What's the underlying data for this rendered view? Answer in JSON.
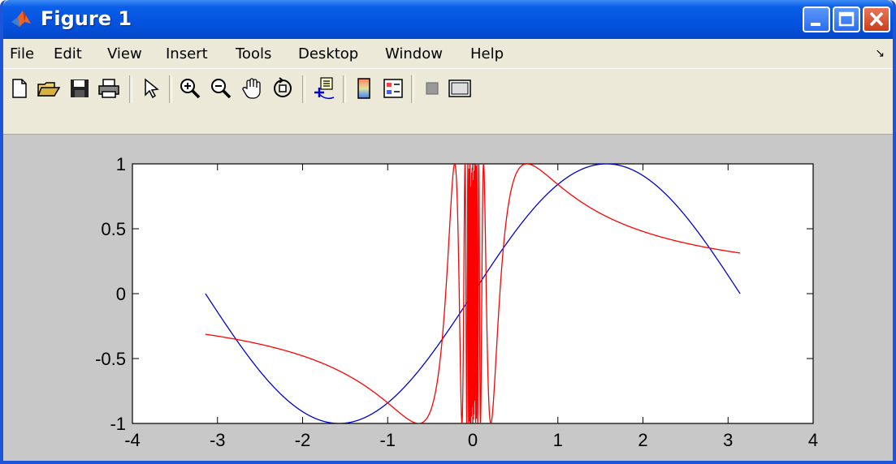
{
  "window": {
    "title": "Figure 1"
  },
  "menu": {
    "items": [
      "File",
      "Edit",
      "View",
      "Insert",
      "Tools",
      "Desktop",
      "Window",
      "Help"
    ]
  },
  "toolbar": {
    "buttons": [
      "new-figure",
      "open-file",
      "save-figure",
      "print-figure",
      "edit-plot",
      "zoom-in",
      "zoom-out",
      "pan",
      "rotate-3d",
      "data-cursor",
      "insert-colorbar",
      "insert-legend",
      "hide-plot-tools",
      "show-plot-tools"
    ]
  },
  "colors": {
    "series1": "#0000cc",
    "series2": "#ff0000",
    "titlebar": "#0553e0"
  },
  "chart_data": {
    "type": "line",
    "title": "",
    "xlabel": "",
    "ylabel": "",
    "xlim": [
      -4,
      4
    ],
    "ylim": [
      -1,
      1
    ],
    "xticks": [
      -4,
      -3,
      -2,
      -1,
      0,
      1,
      2,
      3,
      4
    ],
    "yticks": [
      1,
      0.5,
      0,
      -0.5,
      -1
    ],
    "ytick_labels": [
      "1",
      "0.5",
      "0",
      "-0.5",
      "-1"
    ],
    "grid": false,
    "series": [
      {
        "color": "#0000cc",
        "function": "sin(x)",
        "x_range": [
          -3.1416,
          3.1416
        ]
      },
      {
        "color": "#ff0000",
        "function": "sin(1/x)",
        "x_range": [
          -3.1416,
          3.1416
        ]
      }
    ]
  }
}
